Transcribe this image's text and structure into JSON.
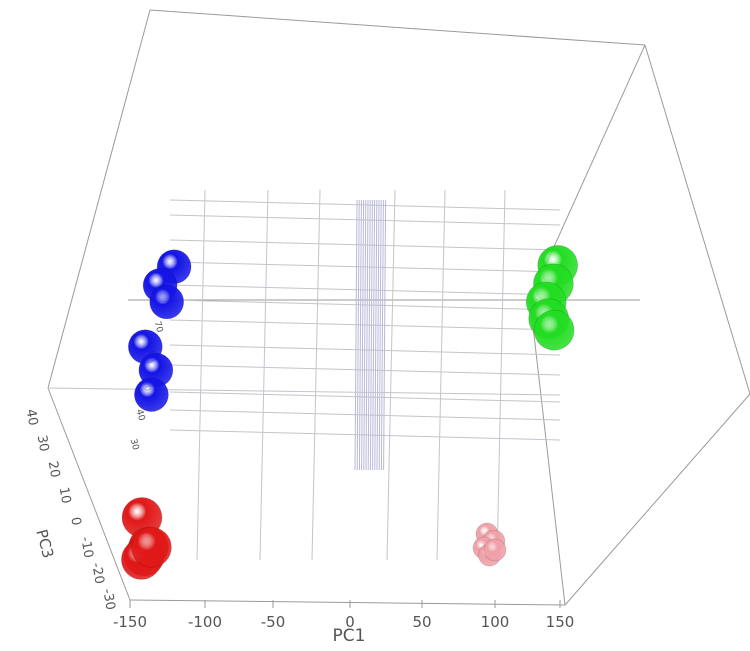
{
  "chart_data": {
    "type": "scatter",
    "projection": "3d",
    "xlabel": "PC1",
    "ylabel": "",
    "zlabel": "PC3",
    "x_ticks": [
      "-150",
      "-100",
      "-50",
      "0",
      "50",
      "100",
      "150"
    ],
    "z_ticks": [
      "-30",
      "-20",
      "-10",
      "0",
      "10",
      "20",
      "30",
      "40"
    ],
    "y_ticks": [
      "30",
      "40",
      "50",
      "60",
      "70",
      "80"
    ],
    "grid": true,
    "legend": "none",
    "colors": {
      "blue": "#1414e6",
      "red": "#e01818",
      "green": "#22dd22",
      "pink": "#f0a0a8"
    },
    "groups": [
      {
        "color": "blue",
        "points": [
          [
            -130,
            70,
            28
          ],
          [
            -140,
            65,
            22
          ],
          [
            -135,
            60,
            18
          ],
          [
            -150,
            45,
            12
          ],
          [
            -142,
            38,
            6
          ],
          [
            -145,
            30,
            2
          ]
        ]
      },
      {
        "color": "red",
        "points": [
          [
            -150,
            -20,
            10
          ],
          [
            -145,
            -28,
            0
          ],
          [
            -148,
            -30,
            -4
          ],
          [
            -150,
            -32,
            -2
          ],
          [
            -143,
            -26,
            -6
          ]
        ]
      },
      {
        "color": "green",
        "points": [
          [
            148,
            70,
            30
          ],
          [
            145,
            65,
            24
          ],
          [
            140,
            60,
            18
          ],
          [
            142,
            55,
            14
          ],
          [
            146,
            52,
            10
          ]
        ]
      },
      {
        "color": "pink",
        "points": [
          [
            100,
            -20,
            -10
          ],
          [
            105,
            -22,
            -12
          ],
          [
            98,
            -24,
            -14
          ],
          [
            102,
            -26,
            -16
          ],
          [
            106,
            -25,
            -13
          ]
        ]
      }
    ]
  }
}
